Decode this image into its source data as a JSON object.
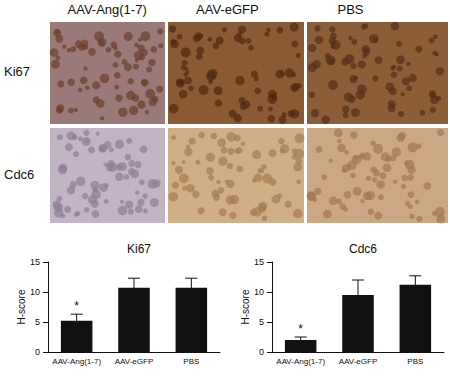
{
  "image_panels": {
    "columns": [
      "AAV-Ang(1-7)",
      "AAV-eGFP",
      "PBS"
    ],
    "rows": [
      "Ki67",
      "Cdc6"
    ]
  },
  "chart_data": [
    {
      "type": "bar",
      "title": "Ki67",
      "categories": [
        "AAV-Ang(1-7)",
        "AAV-eGFP",
        "PBS"
      ],
      "values": [
        5.2,
        10.7,
        10.7
      ],
      "error": [
        1.1,
        1.6,
        1.6
      ],
      "color": "#111111",
      "ylabel": "H-score",
      "ylim": [
        0,
        15
      ],
      "yticks": [
        0,
        5,
        10,
        15
      ],
      "grid": false,
      "annotations": [
        {
          "category": "AAV-Ang(1-7)",
          "text": "*"
        }
      ]
    },
    {
      "type": "bar",
      "title": "Cdc6",
      "categories": [
        "AAV-Ang(1-7)",
        "AAV-eGFP",
        "PBS"
      ],
      "values": [
        2.0,
        9.5,
        11.2
      ],
      "error": [
        0.5,
        2.5,
        1.5
      ],
      "color": "#111111",
      "ylabel": "H-score",
      "ylim": [
        0,
        15
      ],
      "yticks": [
        0,
        5,
        10,
        15
      ],
      "grid": false,
      "annotations": [
        {
          "category": "AAV-Ang(1-7)",
          "text": "*"
        }
      ]
    }
  ]
}
